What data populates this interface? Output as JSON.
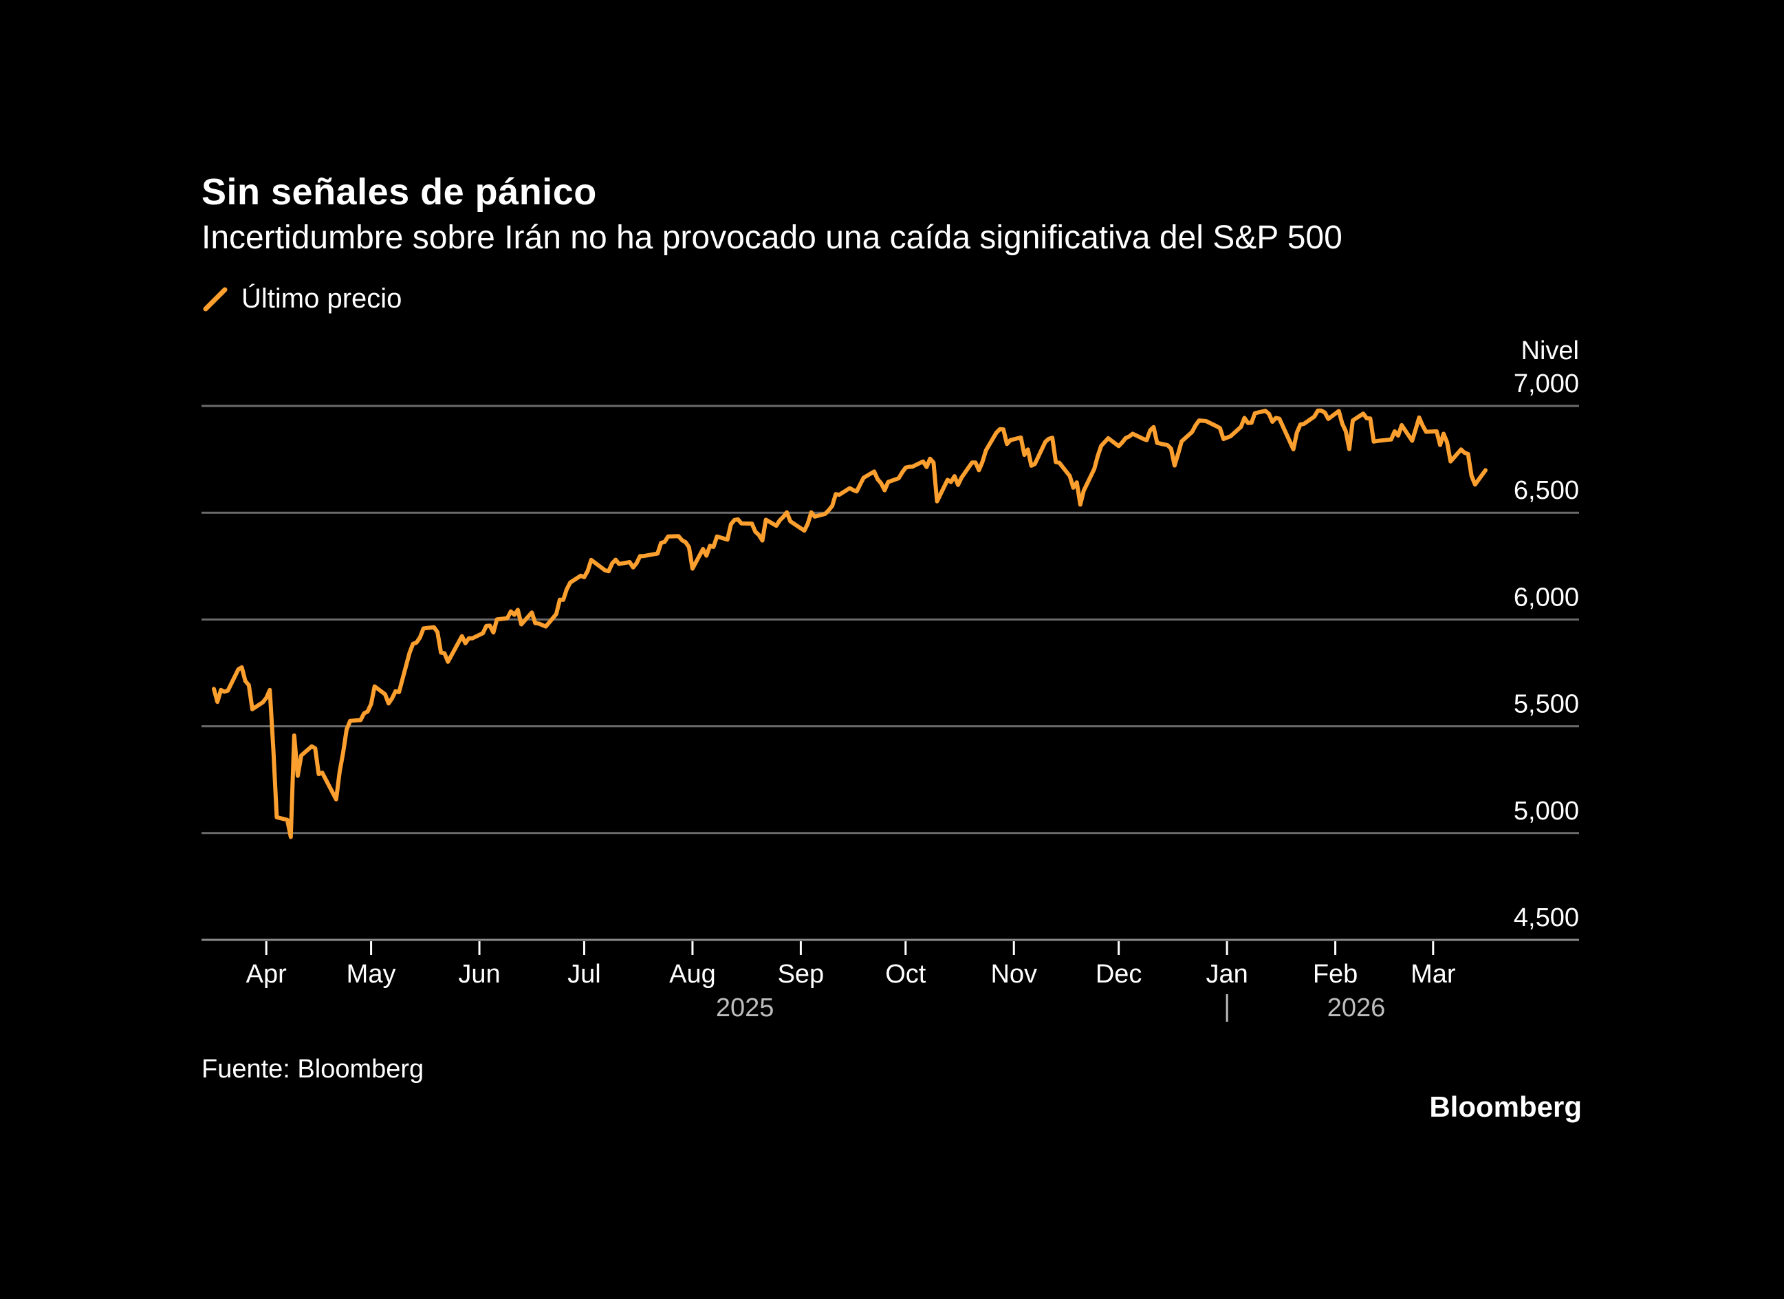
{
  "header": {
    "title": "Sin señales de pánico",
    "subtitle": "Incertidumbre sobre Irán no ha provocado una caída significativa del S&P 500"
  },
  "footer": {
    "source": "Fuente: Bloomberg",
    "logo": "Bloomberg"
  },
  "chart_data": {
    "type": "line",
    "title": "Sin señales de pánico",
    "subtitle": "Incertidumbre sobre Irán no ha provocado una caída significativa del S&P 500",
    "ylabel": "Nivel",
    "xlabel": "",
    "ylim": [
      4500,
      7000
    ],
    "yticks": [
      4500,
      5000,
      5500,
      6000,
      6500,
      7000
    ],
    "ytick_labels": [
      "4,500",
      "5,000",
      "5,500",
      "6,000",
      "6,500",
      "7,000"
    ],
    "xlim": [
      "2025-03-17",
      "2026-03-16"
    ],
    "xticks": [
      "2025-04-01",
      "2025-05-01",
      "2025-06-01",
      "2025-07-01",
      "2025-08-01",
      "2025-09-01",
      "2025-10-01",
      "2025-11-01",
      "2025-12-01",
      "2026-01-01",
      "2026-02-01",
      "2026-03-01"
    ],
    "xtick_labels": [
      "Apr",
      "May",
      "Jun",
      "Jul",
      "Aug",
      "Sep",
      "Oct",
      "Nov",
      "Dec",
      "Jan",
      "Feb",
      "Mar"
    ],
    "year_labels": [
      {
        "label": "2025",
        "from": "2025-04-01",
        "to": "2025-12-31"
      },
      {
        "label": "2026",
        "from": "2026-01-01",
        "to": "2026-03-16"
      }
    ],
    "grid": true,
    "legend_position": "top-left",
    "colors": {
      "line": "#fb9f2f",
      "grid": "#6b6b6b",
      "background": "#000000"
    },
    "series": [
      {
        "name": "Último precio",
        "points": [
          [
            "2025-03-17",
            5675
          ],
          [
            "2025-03-18",
            5614
          ],
          [
            "2025-03-19",
            5670
          ],
          [
            "2025-03-20",
            5662
          ],
          [
            "2025-03-21",
            5667
          ],
          [
            "2025-03-24",
            5767
          ],
          [
            "2025-03-25",
            5776
          ],
          [
            "2025-03-26",
            5712
          ],
          [
            "2025-03-27",
            5693
          ],
          [
            "2025-03-28",
            5580
          ],
          [
            "2025-03-31",
            5612
          ],
          [
            "2025-04-01",
            5633
          ],
          [
            "2025-04-02",
            5670
          ],
          [
            "2025-04-03",
            5396
          ],
          [
            "2025-04-04",
            5074
          ],
          [
            "2025-04-07",
            5062
          ],
          [
            "2025-04-08",
            4982
          ],
          [
            "2025-04-09",
            5457
          ],
          [
            "2025-04-10",
            5268
          ],
          [
            "2025-04-11",
            5363
          ],
          [
            "2025-04-14",
            5406
          ],
          [
            "2025-04-15",
            5397
          ],
          [
            "2025-04-16",
            5276
          ],
          [
            "2025-04-17",
            5283
          ],
          [
            "2025-04-21",
            5158
          ],
          [
            "2025-04-22",
            5288
          ],
          [
            "2025-04-23",
            5376
          ],
          [
            "2025-04-24",
            5485
          ],
          [
            "2025-04-25",
            5525
          ],
          [
            "2025-04-28",
            5529
          ],
          [
            "2025-04-29",
            5561
          ],
          [
            "2025-04-30",
            5569
          ],
          [
            "2025-05-01",
            5604
          ],
          [
            "2025-05-02",
            5687
          ],
          [
            "2025-05-05",
            5650
          ],
          [
            "2025-05-06",
            5607
          ],
          [
            "2025-05-07",
            5631
          ],
          [
            "2025-05-08",
            5664
          ],
          [
            "2025-05-09",
            5660
          ],
          [
            "2025-05-12",
            5844
          ],
          [
            "2025-05-13",
            5886
          ],
          [
            "2025-05-14",
            5892
          ],
          [
            "2025-05-15",
            5916
          ],
          [
            "2025-05-16",
            5958
          ],
          [
            "2025-05-19",
            5964
          ],
          [
            "2025-05-20",
            5941
          ],
          [
            "2025-05-21",
            5845
          ],
          [
            "2025-05-22",
            5842
          ],
          [
            "2025-05-23",
            5802
          ],
          [
            "2025-05-27",
            5922
          ],
          [
            "2025-05-28",
            5889
          ],
          [
            "2025-05-29",
            5912
          ],
          [
            "2025-05-30",
            5912
          ],
          [
            "2025-06-02",
            5936
          ],
          [
            "2025-06-03",
            5970
          ],
          [
            "2025-06-04",
            5971
          ],
          [
            "2025-06-05",
            5939
          ],
          [
            "2025-06-06",
            6000
          ],
          [
            "2025-06-09",
            6006
          ],
          [
            "2025-06-10",
            6038
          ],
          [
            "2025-06-11",
            6022
          ],
          [
            "2025-06-12",
            6045
          ],
          [
            "2025-06-13",
            5977
          ],
          [
            "2025-06-16",
            6033
          ],
          [
            "2025-06-17",
            5983
          ],
          [
            "2025-06-18",
            5981
          ],
          [
            "2025-06-20",
            5967
          ],
          [
            "2025-06-23",
            6025
          ],
          [
            "2025-06-24",
            6092
          ],
          [
            "2025-06-25",
            6092
          ],
          [
            "2025-06-26",
            6141
          ],
          [
            "2025-06-27",
            6173
          ],
          [
            "2025-06-30",
            6205
          ],
          [
            "2025-07-01",
            6198
          ],
          [
            "2025-07-02",
            6227
          ],
          [
            "2025-07-03",
            6279
          ],
          [
            "2025-07-07",
            6230
          ],
          [
            "2025-07-08",
            6226
          ],
          [
            "2025-07-09",
            6263
          ],
          [
            "2025-07-10",
            6280
          ],
          [
            "2025-07-11",
            6260
          ],
          [
            "2025-07-14",
            6269
          ],
          [
            "2025-07-15",
            6244
          ],
          [
            "2025-07-16",
            6264
          ],
          [
            "2025-07-17",
            6297
          ],
          [
            "2025-07-18",
            6297
          ],
          [
            "2025-07-21",
            6306
          ],
          [
            "2025-07-22",
            6309
          ],
          [
            "2025-07-23",
            6359
          ],
          [
            "2025-07-24",
            6363
          ],
          [
            "2025-07-25",
            6389
          ],
          [
            "2025-07-28",
            6390
          ],
          [
            "2025-07-29",
            6371
          ],
          [
            "2025-07-30",
            6362
          ],
          [
            "2025-07-31",
            6339
          ],
          [
            "2025-08-01",
            6238
          ],
          [
            "2025-08-04",
            6330
          ],
          [
            "2025-08-05",
            6299
          ],
          [
            "2025-08-06",
            6345
          ],
          [
            "2025-08-07",
            6340
          ],
          [
            "2025-08-08",
            6389
          ],
          [
            "2025-08-11",
            6374
          ],
          [
            "2025-08-12",
            6446
          ],
          [
            "2025-08-13",
            6466
          ],
          [
            "2025-08-14",
            6469
          ],
          [
            "2025-08-15",
            6450
          ],
          [
            "2025-08-18",
            6449
          ],
          [
            "2025-08-19",
            6411
          ],
          [
            "2025-08-20",
            6396
          ],
          [
            "2025-08-21",
            6370
          ],
          [
            "2025-08-22",
            6467
          ],
          [
            "2025-08-25",
            6439
          ],
          [
            "2025-08-26",
            6465
          ],
          [
            "2025-08-27",
            6481
          ],
          [
            "2025-08-28",
            6502
          ],
          [
            "2025-08-29",
            6460
          ],
          [
            "2025-09-02",
            6416
          ],
          [
            "2025-09-03",
            6448
          ],
          [
            "2025-09-04",
            6502
          ],
          [
            "2025-09-05",
            6482
          ],
          [
            "2025-09-08",
            6495
          ],
          [
            "2025-09-09",
            6512
          ],
          [
            "2025-09-10",
            6532
          ],
          [
            "2025-09-11",
            6587
          ],
          [
            "2025-09-12",
            6584
          ],
          [
            "2025-09-15",
            6615
          ],
          [
            "2025-09-16",
            6606
          ],
          [
            "2025-09-17",
            6600
          ],
          [
            "2025-09-18",
            6632
          ],
          [
            "2025-09-19",
            6664
          ],
          [
            "2025-09-22",
            6693
          ],
          [
            "2025-09-23",
            6657
          ],
          [
            "2025-09-24",
            6638
          ],
          [
            "2025-09-25",
            6605
          ],
          [
            "2025-09-26",
            6644
          ],
          [
            "2025-09-29",
            6661
          ],
          [
            "2025-09-30",
            6688
          ],
          [
            "2025-10-01",
            6711
          ],
          [
            "2025-10-02",
            6715
          ],
          [
            "2025-10-03",
            6716
          ],
          [
            "2025-10-06",
            6740
          ],
          [
            "2025-10-07",
            6714
          ],
          [
            "2025-10-08",
            6753
          ],
          [
            "2025-10-09",
            6735
          ],
          [
            "2025-10-10",
            6553
          ],
          [
            "2025-10-13",
            6654
          ],
          [
            "2025-10-14",
            6644
          ],
          [
            "2025-10-15",
            6671
          ],
          [
            "2025-10-16",
            6630
          ],
          [
            "2025-10-17",
            6664
          ],
          [
            "2025-10-20",
            6735
          ],
          [
            "2025-10-21",
            6735
          ],
          [
            "2025-10-22",
            6699
          ],
          [
            "2025-10-23",
            6738
          ],
          [
            "2025-10-24",
            6792
          ],
          [
            "2025-10-27",
            6875
          ],
          [
            "2025-10-28",
            6891
          ],
          [
            "2025-10-29",
            6890
          ],
          [
            "2025-10-30",
            6822
          ],
          [
            "2025-10-31",
            6840
          ],
          [
            "2025-11-03",
            6852
          ],
          [
            "2025-11-04",
            6771
          ],
          [
            "2025-11-05",
            6796
          ],
          [
            "2025-11-06",
            6720
          ],
          [
            "2025-11-07",
            6728
          ],
          [
            "2025-11-10",
            6832
          ],
          [
            "2025-11-11",
            6846
          ],
          [
            "2025-11-12",
            6851
          ],
          [
            "2025-11-13",
            6737
          ],
          [
            "2025-11-14",
            6734
          ],
          [
            "2025-11-17",
            6672
          ],
          [
            "2025-11-18",
            6617
          ],
          [
            "2025-11-19",
            6642
          ],
          [
            "2025-11-20",
            6538
          ],
          [
            "2025-11-21",
            6603
          ],
          [
            "2025-11-24",
            6705
          ],
          [
            "2025-11-25",
            6766
          ],
          [
            "2025-11-26",
            6813
          ],
          [
            "2025-11-28",
            6849
          ],
          [
            "2025-12-01",
            6812
          ],
          [
            "2025-12-02",
            6829
          ],
          [
            "2025-12-03",
            6850
          ],
          [
            "2025-12-04",
            6857
          ],
          [
            "2025-12-05",
            6870
          ],
          [
            "2025-12-08",
            6846
          ],
          [
            "2025-12-09",
            6840
          ],
          [
            "2025-12-10",
            6886
          ],
          [
            "2025-12-11",
            6901
          ],
          [
            "2025-12-12",
            6827
          ],
          [
            "2025-12-15",
            6816
          ],
          [
            "2025-12-16",
            6800
          ],
          [
            "2025-12-17",
            6721
          ],
          [
            "2025-12-18",
            6775
          ],
          [
            "2025-12-19",
            6834
          ],
          [
            "2025-12-22",
            6878
          ],
          [
            "2025-12-23",
            6909
          ],
          [
            "2025-12-24",
            6932
          ],
          [
            "2025-12-26",
            6929
          ],
          [
            "2025-12-29",
            6905
          ],
          [
            "2025-12-30",
            6896
          ],
          [
            "2025-12-31",
            6845
          ],
          [
            "2026-01-02",
            6858
          ],
          [
            "2026-01-05",
            6902
          ],
          [
            "2026-01-06",
            6944
          ],
          [
            "2026-01-07",
            6920
          ],
          [
            "2026-01-08",
            6921
          ],
          [
            "2026-01-09",
            6966
          ],
          [
            "2026-01-12",
            6977
          ],
          [
            "2026-01-13",
            6963
          ],
          [
            "2026-01-14",
            6926
          ],
          [
            "2026-01-15",
            6944
          ],
          [
            "2026-01-16",
            6940
          ],
          [
            "2026-01-20",
            6797
          ],
          [
            "2026-01-21",
            6875
          ],
          [
            "2026-01-22",
            6913
          ],
          [
            "2026-01-23",
            6916
          ],
          [
            "2026-01-26",
            6950
          ],
          [
            "2026-01-27",
            6978
          ],
          [
            "2026-01-28",
            6978
          ],
          [
            "2026-01-29",
            6969
          ],
          [
            "2026-01-30",
            6939
          ],
          [
            "2026-02-02",
            6976
          ],
          [
            "2026-02-03",
            6917
          ],
          [
            "2026-02-04",
            6882
          ],
          [
            "2026-02-05",
            6798
          ],
          [
            "2026-02-06",
            6932
          ],
          [
            "2026-02-09",
            6964
          ],
          [
            "2026-02-10",
            6942
          ],
          [
            "2026-02-11",
            6941
          ],
          [
            "2026-02-12",
            6833
          ],
          [
            "2026-02-13",
            6836
          ],
          [
            "2026-02-17",
            6843
          ],
          [
            "2026-02-18",
            6881
          ],
          [
            "2026-02-19",
            6861
          ],
          [
            "2026-02-20",
            6910
          ],
          [
            "2026-02-23",
            6837
          ],
          [
            "2026-02-24",
            6890
          ],
          [
            "2026-02-25",
            6946
          ],
          [
            "2026-02-26",
            6908
          ],
          [
            "2026-02-27",
            6879
          ],
          [
            "2026-03-02",
            6881
          ],
          [
            "2026-03-03",
            6817
          ],
          [
            "2026-03-04",
            6870
          ],
          [
            "2026-03-05",
            6830
          ],
          [
            "2026-03-06",
            6740
          ],
          [
            "2026-03-09",
            6796
          ],
          [
            "2026-03-10",
            6781
          ],
          [
            "2026-03-11",
            6775
          ],
          [
            "2026-03-12",
            6672
          ],
          [
            "2026-03-13",
            6632
          ],
          [
            "2026-03-16",
            6699
          ]
        ]
      }
    ]
  }
}
